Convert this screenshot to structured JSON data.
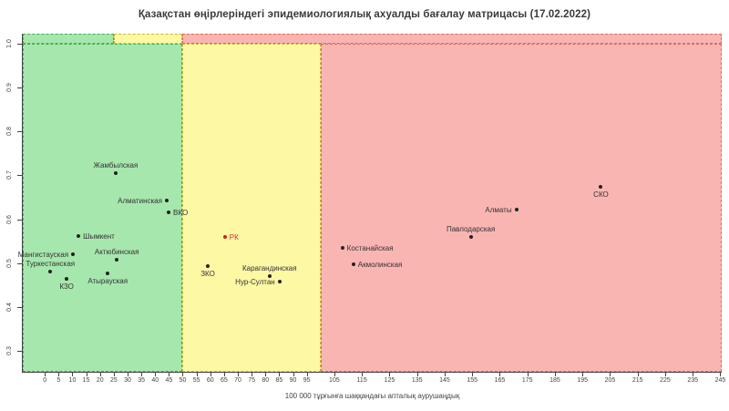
{
  "page": {
    "background": "#ffffff"
  },
  "chart_data": {
    "type": "scatter",
    "title": "Қазақстан өңірлеріндегі эпидемиологиялық ахуалды бағалау матрицасы (17.02.2022)",
    "xlabel": "100 000 тұрғынға шаққандағы апталық аурушаңдық",
    "ylabel": "",
    "xlim": [
      -8,
      245.5
    ],
    "ylim": [
      0.252,
      1.023
    ],
    "x_ticks": [
      0,
      5,
      10,
      15,
      20,
      25,
      30,
      35,
      40,
      45,
      50,
      55,
      60,
      65,
      70,
      75,
      80,
      85,
      90,
      95,
      105,
      115,
      125,
      135,
      145,
      155,
      165,
      175,
      185,
      195,
      205,
      215,
      225,
      235,
      245
    ],
    "y_ticks": [
      1.0,
      0.9,
      0.8,
      0.7,
      0.6,
      0.5,
      0.4,
      0.3
    ],
    "grid": false,
    "legend": "none",
    "threshold_line_y": 1.0,
    "point_color": "#222222",
    "label_color": "#333333",
    "axis_color": "#444444",
    "zones": [
      {
        "name": "green-low-risk",
        "x0": -8,
        "x1": 50,
        "y0": 0.252,
        "y1": 1.0,
        "fill": "#a6e7ad",
        "border": "#4aab58"
      },
      {
        "name": "yellow-medium-risk",
        "x0": 50,
        "x1": 100,
        "y0": 0.252,
        "y1": 1.0,
        "fill": "#fcf8a3",
        "border": "#cbb63e"
      },
      {
        "name": "red-high-risk",
        "x0": 100,
        "x1": 245.5,
        "y0": 0.252,
        "y1": 1.0,
        "fill": "#f9b5b2",
        "border": "#d96a62"
      },
      {
        "name": "green-top-band",
        "x0": -8,
        "x1": 25,
        "y0": 1.0,
        "y1": 1.023,
        "fill": "#a6e7ad",
        "border": "#4aab58"
      },
      {
        "name": "yellow-top-band",
        "x0": 25,
        "x1": 50,
        "y0": 1.0,
        "y1": 1.023,
        "fill": "#fcf8a3",
        "border": "#cbb63e"
      },
      {
        "name": "red-top-band",
        "x0": 50,
        "x1": 245.5,
        "y0": 1.0,
        "y1": 1.023,
        "fill": "#f9b5b2",
        "border": "#d96a62"
      }
    ],
    "points": [
      {
        "label": "Жамбылская",
        "x": 25.7,
        "y": 0.705,
        "label_pos": "above"
      },
      {
        "label": "Алматинская",
        "x": 44.2,
        "y": 0.642,
        "label_pos": "left"
      },
      {
        "label": "ВКО",
        "x": 44.9,
        "y": 0.615,
        "label_pos": "right"
      },
      {
        "label": "Шымкент",
        "x": 12.2,
        "y": 0.561,
        "label_pos": "right"
      },
      {
        "label": "Мангистауская",
        "x": 10.2,
        "y": 0.52,
        "label_pos": "left"
      },
      {
        "label": "Актюбинская",
        "x": 26.1,
        "y": 0.507,
        "label_pos": "above"
      },
      {
        "label": "Туркестанская",
        "x": 2.0,
        "y": 0.48,
        "label_pos": "above"
      },
      {
        "label": "Атырауская",
        "x": 22.8,
        "y": 0.476,
        "label_pos": "below"
      },
      {
        "label": "КЗО",
        "x": 7.9,
        "y": 0.464,
        "label_pos": "below"
      },
      {
        "label": "РК",
        "x": 65.3,
        "y": 0.559,
        "label_pos": "right",
        "color": "#cc2222",
        "label_color": "#cc3333"
      },
      {
        "label": "ЗКО",
        "x": 59.1,
        "y": 0.493,
        "label_pos": "below"
      },
      {
        "label": "Карагандинская",
        "x": 81.5,
        "y": 0.47,
        "label_pos": "above"
      },
      {
        "label": "Нур-Султан",
        "x": 85.1,
        "y": 0.457,
        "label_pos": "left"
      },
      {
        "label": "СКО",
        "x": 201.7,
        "y": 0.674,
        "label_pos": "below"
      },
      {
        "label": "Алматы",
        "x": 171.0,
        "y": 0.622,
        "label_pos": "left"
      },
      {
        "label": "Павлодарская",
        "x": 154.5,
        "y": 0.559,
        "label_pos": "above"
      },
      {
        "label": "Костанайская",
        "x": 107.9,
        "y": 0.534,
        "label_pos": "right"
      },
      {
        "label": "Акмолинская",
        "x": 111.9,
        "y": 0.497,
        "label_pos": "right"
      }
    ]
  }
}
